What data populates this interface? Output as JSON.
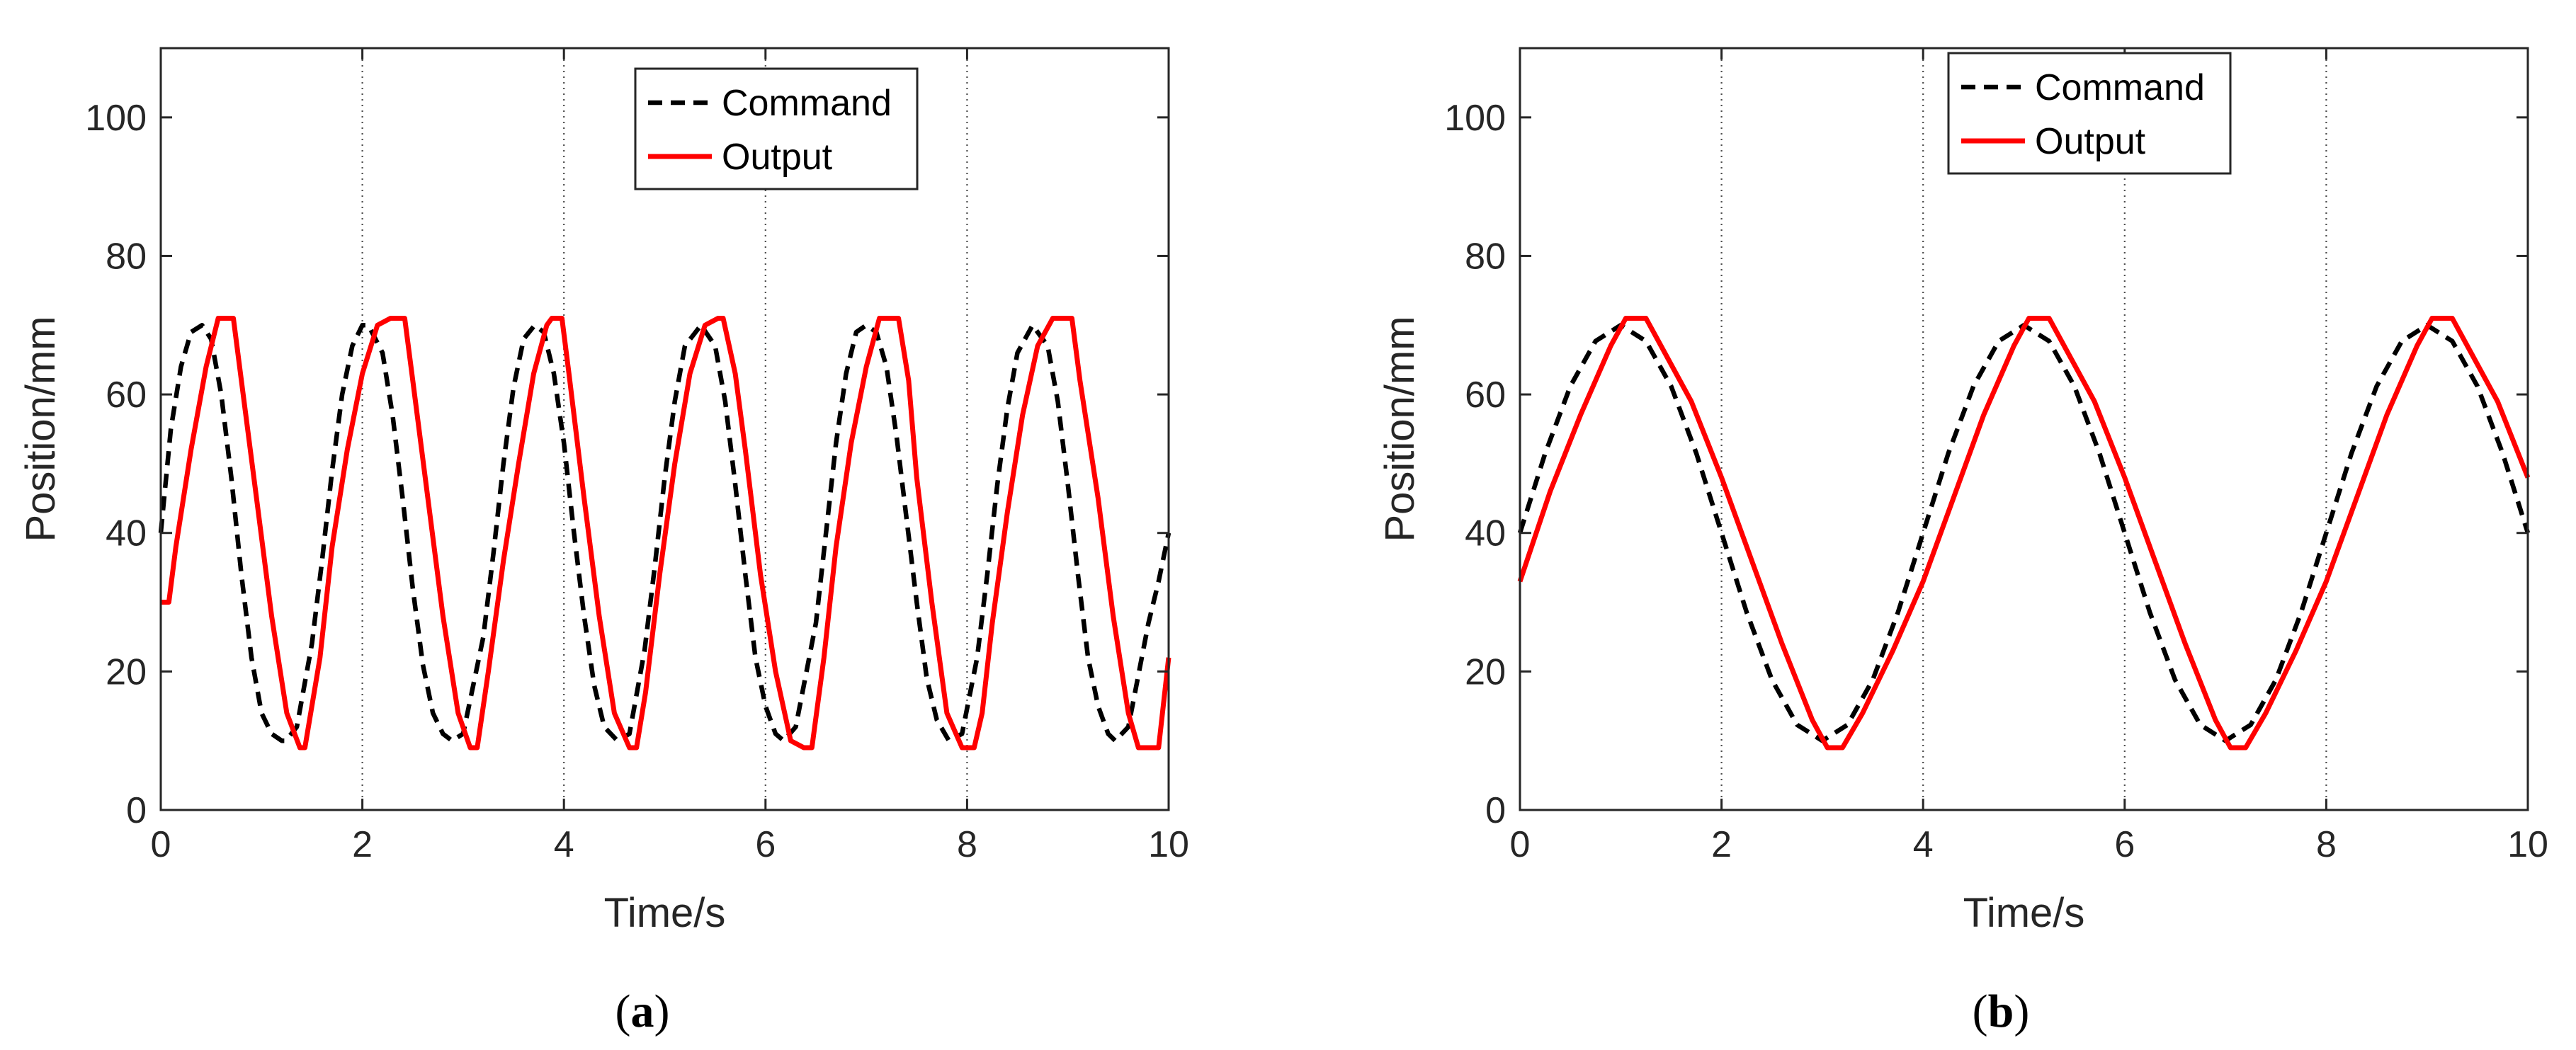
{
  "chart_data": [
    {
      "type": "line",
      "caption": "(a)",
      "caption_open": "(",
      "caption_letter": "a",
      "caption_close": ")",
      "xlabel": "Time/s",
      "ylabel": "Position/mm",
      "xlim": [
        0,
        10
      ],
      "ylim": [
        0,
        110
      ],
      "xticks": [
        0,
        2,
        4,
        6,
        8,
        10
      ],
      "yticks": [
        0,
        20,
        40,
        60,
        80,
        100
      ],
      "x_grid": "dotted vertical lines at x ticks",
      "legend_position": "top-center",
      "series": [
        {
          "name": "Command",
          "style": "dashed",
          "color": "#000000",
          "x": [
            0,
            0.1,
            0.2,
            0.3,
            0.41,
            0.5,
            0.6,
            0.7,
            0.8,
            0.9,
            1.0,
            1.1,
            1.2,
            1.24,
            1.35,
            1.5,
            1.6,
            1.7,
            1.8,
            1.9,
            2.0,
            2.06,
            2.2,
            2.3,
            2.4,
            2.5,
            2.6,
            2.7,
            2.8,
            2.89,
            3.0,
            3.2,
            3.3,
            3.4,
            3.5,
            3.6,
            3.71,
            3.8,
            3.9,
            4.0,
            4.1,
            4.2,
            4.3,
            4.4,
            4.53,
            4.65,
            4.8,
            4.9,
            5.0,
            5.1,
            5.2,
            5.36,
            5.5,
            5.6,
            5.7,
            5.8,
            5.9,
            6.0,
            6.1,
            6.18,
            6.3,
            6.5,
            6.6,
            6.7,
            6.8,
            6.9,
            7.0,
            7.1,
            7.2,
            7.3,
            7.4,
            7.5,
            7.6,
            7.7,
            7.82,
            7.95,
            8.1,
            8.2,
            8.3,
            8.4,
            8.5,
            8.65,
            8.8,
            8.9,
            9.0,
            9.1,
            9.2,
            9.3,
            9.4,
            9.47,
            9.6,
            9.8,
            9.9,
            10.0
          ],
          "y": [
            40,
            55,
            64,
            69,
            70,
            68,
            60,
            48,
            34,
            22,
            14,
            11,
            10,
            10,
            12,
            24,
            36,
            49,
            60,
            67,
            70,
            70,
            66,
            57,
            45,
            32,
            21,
            14,
            11,
            10,
            11,
            25,
            37,
            50,
            61,
            68,
            70,
            69,
            63,
            53,
            40,
            28,
            18,
            12,
            10,
            11,
            23,
            35,
            48,
            59,
            67,
            70,
            67,
            59,
            47,
            34,
            22,
            15,
            11,
            10,
            12,
            27,
            40,
            53,
            63,
            69,
            70,
            69,
            64,
            54,
            42,
            30,
            19,
            13,
            10,
            11,
            22,
            34,
            47,
            58,
            66,
            70,
            67,
            59,
            47,
            34,
            22,
            15,
            11,
            10,
            12,
            27,
            33,
            40
          ]
        },
        {
          "name": "Output",
          "style": "solid",
          "color": "#ff0000",
          "x": [
            0,
            0.08,
            0.15,
            0.3,
            0.45,
            0.57,
            0.62,
            0.72,
            0.8,
            0.95,
            1.1,
            1.25,
            1.38,
            1.43,
            1.58,
            1.7,
            1.85,
            2.0,
            2.15,
            2.28,
            2.33,
            2.42,
            2.5,
            2.65,
            2.8,
            2.95,
            3.07,
            3.14,
            3.25,
            3.4,
            3.55,
            3.7,
            3.83,
            3.88,
            3.98,
            4.05,
            4.2,
            4.35,
            4.5,
            4.65,
            4.72,
            4.81,
            4.95,
            5.1,
            5.25,
            5.4,
            5.53,
            5.58,
            5.7,
            5.8,
            5.95,
            6.1,
            6.25,
            6.38,
            6.46,
            6.58,
            6.7,
            6.85,
            7.0,
            7.13,
            7.26,
            7.32,
            7.42,
            7.5,
            7.65,
            7.8,
            7.95,
            8.07,
            8.15,
            8.25,
            8.4,
            8.55,
            8.7,
            8.85,
            8.96,
            9.04,
            9.12,
            9.3,
            9.45,
            9.6,
            9.7,
            9.8,
            9.9,
            10.0
          ],
          "y": [
            30,
            30,
            38,
            52,
            64,
            71,
            71,
            71,
            62,
            45,
            28,
            14,
            9,
            9,
            22,
            38,
            52,
            63,
            70,
            71,
            71,
            71,
            62,
            45,
            28,
            14,
            9,
            9,
            20,
            36,
            50,
            63,
            70,
            71,
            71,
            63,
            45,
            28,
            14,
            9,
            9,
            17,
            34,
            50,
            63,
            70,
            71,
            71,
            63,
            52,
            34,
            20,
            10,
            9,
            9,
            22,
            38,
            53,
            64,
            71,
            71,
            71,
            62,
            48,
            30,
            14,
            9,
            9,
            14,
            27,
            43,
            57,
            67,
            71,
            71,
            71,
            62,
            45,
            28,
            14,
            9,
            9,
            9,
            22
          ]
        }
      ]
    },
    {
      "type": "line",
      "caption": "(b)",
      "caption_open": "(",
      "caption_letter": "b",
      "caption_close": ")",
      "xlabel": "Time/s",
      "ylabel": "Position/mm",
      "xlim": [
        0,
        10
      ],
      "ylim": [
        0,
        110
      ],
      "xticks": [
        0,
        2,
        4,
        6,
        8,
        10
      ],
      "yticks": [
        0,
        20,
        40,
        60,
        80,
        100
      ],
      "x_grid": "dotted vertical lines at x ticks",
      "legend_position": "top-left",
      "series": [
        {
          "name": "Command",
          "style": "dashed",
          "color": "#000000",
          "x": [
            0,
            0.25,
            0.5,
            0.75,
            1.0,
            1.25,
            1.5,
            1.75,
            2.0,
            2.25,
            2.5,
            2.75,
            3.0,
            3.25,
            3.5,
            3.75,
            4.0,
            4.25,
            4.5,
            4.75,
            5.0,
            5.25,
            5.5,
            5.75,
            6.0,
            6.25,
            6.5,
            6.75,
            7.0,
            7.25,
            7.5,
            7.75,
            8.0,
            8.25,
            8.5,
            8.75,
            9.0,
            9.25,
            9.5,
            9.75,
            10.0
          ],
          "y": [
            40,
            51.5,
            61.2,
            67.7,
            70,
            67.7,
            61.2,
            51.5,
            40,
            28.5,
            18.8,
            12.3,
            10,
            12.3,
            18.8,
            28.5,
            40,
            51.5,
            61.2,
            67.7,
            70,
            67.7,
            61.2,
            51.5,
            40,
            28.5,
            18.8,
            12.3,
            10,
            12.3,
            18.8,
            28.5,
            40,
            51.5,
            61.2,
            67.7,
            70,
            67.7,
            61.2,
            51.5,
            40
          ]
        },
        {
          "name": "Output",
          "style": "solid",
          "color": "#ff0000",
          "x": [
            0,
            0.3,
            0.6,
            0.9,
            1.05,
            1.25,
            1.4,
            1.7,
            2.0,
            2.3,
            2.6,
            2.9,
            3.05,
            3.2,
            3.4,
            3.7,
            4.0,
            4.3,
            4.6,
            4.9,
            5.05,
            5.25,
            5.4,
            5.7,
            6.0,
            6.3,
            6.6,
            6.9,
            7.05,
            7.2,
            7.4,
            7.7,
            8.0,
            8.3,
            8.6,
            8.9,
            9.05,
            9.25,
            9.4,
            9.7,
            10.0
          ],
          "y": [
            33,
            46,
            57,
            67,
            71,
            71,
            67,
            59,
            48,
            36,
            24,
            13,
            9,
            9,
            14,
            23,
            33,
            45,
            57,
            67,
            71,
            71,
            67,
            59,
            48,
            36,
            24,
            13,
            9,
            9,
            14,
            23,
            33,
            45,
            57,
            67,
            71,
            71,
            67,
            59,
            48
          ]
        }
      ]
    }
  ]
}
